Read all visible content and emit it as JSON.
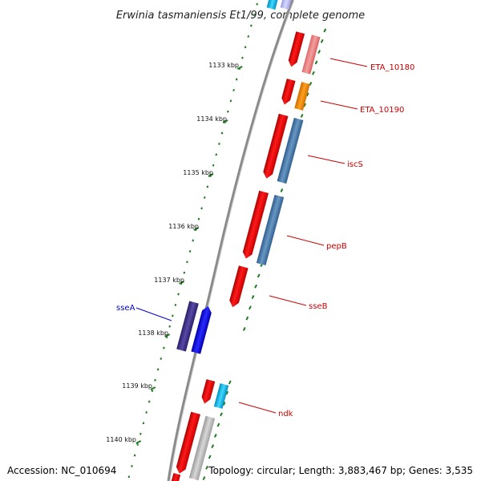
{
  "title": "Erwinia tasmaniensis Et1/99, complete genome",
  "footer": {
    "accession": "Accession: NC_010694",
    "summary": "Topology: circular; Length: 3,883,467 bp; Genes: 3,535"
  },
  "colors": {
    "backbone": "#8a8a8a",
    "ticks": "#1f7a1f",
    "forward_label": "#0000cc",
    "reverse_label": "#cc0000"
  },
  "ruler": [
    {
      "label": "1133 kbp"
    },
    {
      "label": "1134 kbp"
    },
    {
      "label": "1135 kbp"
    },
    {
      "label": "1136 kbp"
    },
    {
      "label": "1137 kbp"
    },
    {
      "label": "1138 kbp"
    },
    {
      "label": "1139 kbp"
    },
    {
      "label": "1140 kbp"
    }
  ],
  "genes": [
    {
      "label": "ETA_10180",
      "strand": "reverse"
    },
    {
      "label": "ETA_10190",
      "strand": "reverse"
    },
    {
      "label": "iscS",
      "strand": "reverse"
    },
    {
      "label": "pepB",
      "strand": "reverse"
    },
    {
      "label": "sseB",
      "strand": "reverse"
    },
    {
      "label": "sseA",
      "strand": "forward"
    },
    {
      "label": "ndk",
      "strand": "reverse"
    }
  ]
}
